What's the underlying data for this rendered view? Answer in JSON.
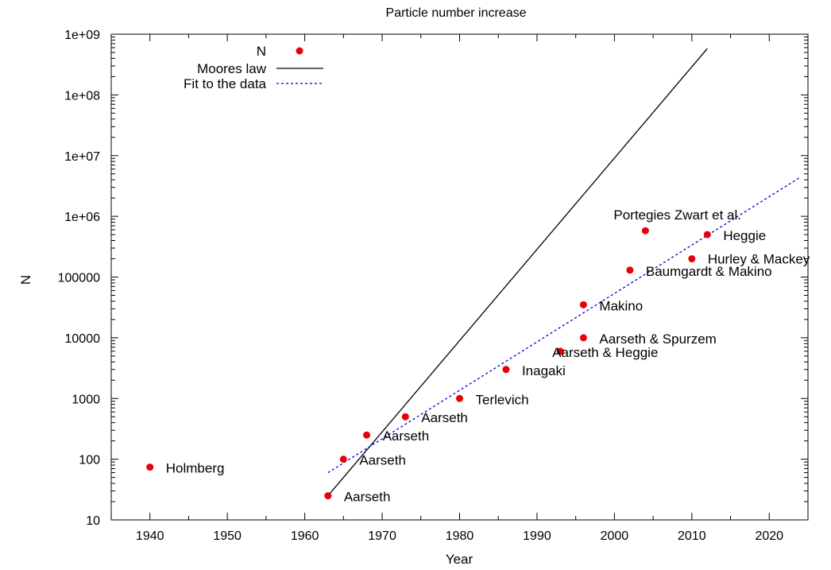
{
  "chart_data": {
    "type": "scatter",
    "title": "Particle number increase",
    "xlabel": "Year",
    "ylabel": "N",
    "xlim": [
      1935,
      2025
    ],
    "ylim": [
      10,
      1000000000
    ],
    "yscale": "log",
    "x_ticks": [
      1940,
      1950,
      1960,
      1970,
      1980,
      1990,
      2000,
      2010,
      2020
    ],
    "y_ticks": [
      {
        "value": 10,
        "label": "10"
      },
      {
        "value": 100,
        "label": "100"
      },
      {
        "value": 1000,
        "label": "1000"
      },
      {
        "value": 10000,
        "label": "10000"
      },
      {
        "value": 100000,
        "label": "100000"
      },
      {
        "value": 1000000,
        "label": "1e+06"
      },
      {
        "value": 10000000,
        "label": "1e+07"
      },
      {
        "value": 100000000,
        "label": "1e+08"
      },
      {
        "value": 1000000000,
        "label": "1e+09"
      }
    ],
    "legend_position": "top-left",
    "legend": [
      {
        "label": "N",
        "style": "point",
        "color": "#e8000b"
      },
      {
        "label": "Moores law",
        "style": "solid-line",
        "color": "#000000"
      },
      {
        "label": "Fit to the data",
        "style": "dashed-line",
        "color": "#0000cc"
      }
    ],
    "series": [
      {
        "name": "N",
        "color": "#e8000b",
        "points": [
          {
            "x": 1940,
            "y": 74,
            "label": "Holmberg"
          },
          {
            "x": 1963,
            "y": 25,
            "label": "Aarseth"
          },
          {
            "x": 1965,
            "y": 100,
            "label": "Aarseth"
          },
          {
            "x": 1968,
            "y": 250,
            "label": "Aarseth"
          },
          {
            "x": 1973,
            "y": 500,
            "label": "Aarseth"
          },
          {
            "x": 1980,
            "y": 1000,
            "label": "Terlevich"
          },
          {
            "x": 1986,
            "y": 3000,
            "label": "Inagaki"
          },
          {
            "x": 1993,
            "y": 6000,
            "label": "Aarseth & Heggie"
          },
          {
            "x": 1996,
            "y": 10000,
            "label": "Aarseth & Spurzem"
          },
          {
            "x": 1996,
            "y": 35000,
            "label": "Makino"
          },
          {
            "x": 2002,
            "y": 130000,
            "label": "Baumgardt & Makino"
          },
          {
            "x": 2004,
            "y": 580000,
            "label": "Portegies Zwart et al."
          },
          {
            "x": 2010,
            "y": 200000,
            "label": "Hurley & Mackey"
          },
          {
            "x": 2012,
            "y": 500000,
            "label": "Heggie"
          }
        ]
      },
      {
        "name": "Moores law",
        "color": "#000000",
        "line": [
          {
            "x": 1963,
            "y": 25
          },
          {
            "x": 2012,
            "y": 580000000
          }
        ]
      },
      {
        "name": "Fit to the data",
        "color": "#0000cc",
        "line": [
          {
            "x": 1963,
            "y": 60
          },
          {
            "x": 2024,
            "y": 4400000
          }
        ]
      }
    ]
  }
}
